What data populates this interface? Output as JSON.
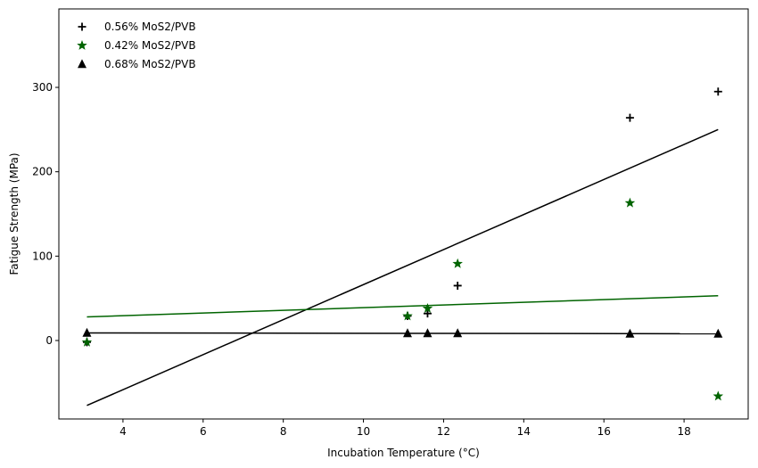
{
  "chart_data": {
    "type": "scatter",
    "title": "",
    "xlabel": "Incubation Temperature (°C)",
    "ylabel": "Fatigue Strength (MPa)",
    "xlim": [
      2.4,
      19.6
    ],
    "ylim": [
      -93,
      393
    ],
    "xticks": [
      4,
      6,
      8,
      10,
      12,
      14,
      16,
      18
    ],
    "yticks": [
      0,
      100,
      200,
      300
    ],
    "grid": false,
    "legend_position": "top-left",
    "series": [
      {
        "name": "0.56% MoS2/PVB",
        "marker": "plus",
        "color": "#000000",
        "x": [
          3.1,
          11.1,
          11.6,
          12.35,
          16.65,
          18.85
        ],
        "y": [
          -2,
          29,
          32,
          65,
          264,
          295
        ],
        "fit": {
          "x": [
            3.1,
            18.85
          ],
          "y": [
            -77,
            250
          ]
        }
      },
      {
        "name": "0.42% MoS2/PVB",
        "marker": "star",
        "color": "#006400",
        "x": [
          3.1,
          11.1,
          11.6,
          12.35,
          16.65,
          18.85
        ],
        "y": [
          -2,
          29,
          38,
          91,
          163,
          -66
        ],
        "fit": {
          "x": [
            3.1,
            18.85
          ],
          "y": [
            28,
            53
          ]
        }
      },
      {
        "name": "0.68% MoS2/PVB",
        "marker": "triangle",
        "color": "#000000",
        "x": [
          3.1,
          11.1,
          11.6,
          12.35,
          16.65,
          18.85
        ],
        "y": [
          9,
          8.5,
          8.5,
          8.5,
          8,
          8
        ],
        "fit": {
          "x": [
            3.1,
            18.85
          ],
          "y": [
            9,
            8
          ]
        }
      }
    ]
  }
}
